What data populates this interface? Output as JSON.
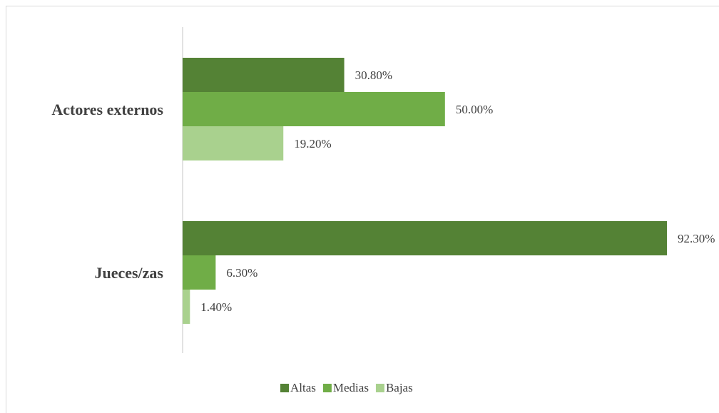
{
  "chart_data": {
    "type": "bar",
    "orientation": "horizontal",
    "categories": [
      "Actores externos",
      "Jueces/zas"
    ],
    "series": [
      {
        "name": "Altas",
        "values": [
          30.8,
          92.3
        ],
        "labels": [
          "30.80%",
          "92.30%"
        ],
        "color": "#548235"
      },
      {
        "name": "Medias",
        "values": [
          50.0,
          6.3
        ],
        "labels": [
          "50.00%",
          "6.30%"
        ],
        "color": "#70ad47"
      },
      {
        "name": "Bajas",
        "values": [
          19.2,
          1.4
        ],
        "labels": [
          "19.20%",
          "1.40%"
        ],
        "color": "#a9d18e"
      }
    ],
    "title": "",
    "xlabel": "",
    "ylabel": "",
    "xlim": [
      0,
      100
    ],
    "grid": false,
    "legend": "bottom"
  }
}
